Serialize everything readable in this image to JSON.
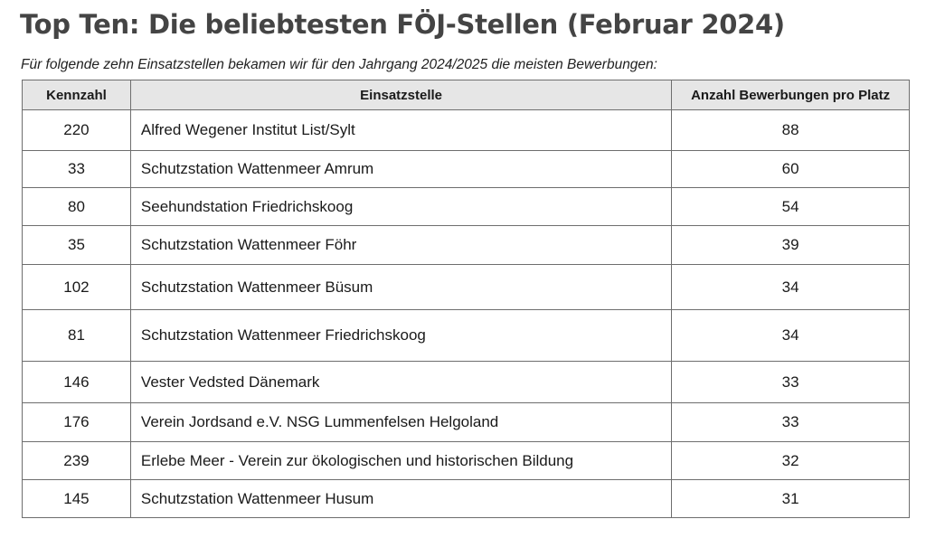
{
  "title": "Top Ten: Die beliebtesten FÖJ-Stellen (Februar 2024)",
  "subtitle": "Für folgende zehn Einsatzstellen bekamen wir für den Jahrgang 2024/2025 die meisten Bewerbungen:",
  "table": {
    "headers": [
      "Kennzahl",
      "Einsatzstelle",
      "Anzahl Bewerbungen pro Platz"
    ],
    "rows": [
      [
        "220",
        "Alfred Wegener Institut List/Sylt",
        "88"
      ],
      [
        "33",
        "Schutzstation Wattenmeer Amrum",
        "60"
      ],
      [
        "80",
        "Seehundstation Friedrichskoog",
        "54"
      ],
      [
        "35",
        "Schutzstation Wattenmeer Föhr",
        "39"
      ],
      [
        "102",
        "Schutzstation Wattenmeer Büsum",
        "34"
      ],
      [
        "81",
        "Schutzstation Wattenmeer Friedrichskoog",
        "34"
      ],
      [
        "146",
        "Vester Vedsted Dänemark",
        "33"
      ],
      [
        "176",
        "Verein Jordsand e.V. NSG Lummenfelsen Helgoland",
        "33"
      ],
      [
        "239",
        "Erlebe Meer - Verein zur ökologischen und historischen Bildung",
        "32"
      ],
      [
        "145",
        "Schutzstation Wattenmeer Husum",
        "31"
      ]
    ]
  }
}
